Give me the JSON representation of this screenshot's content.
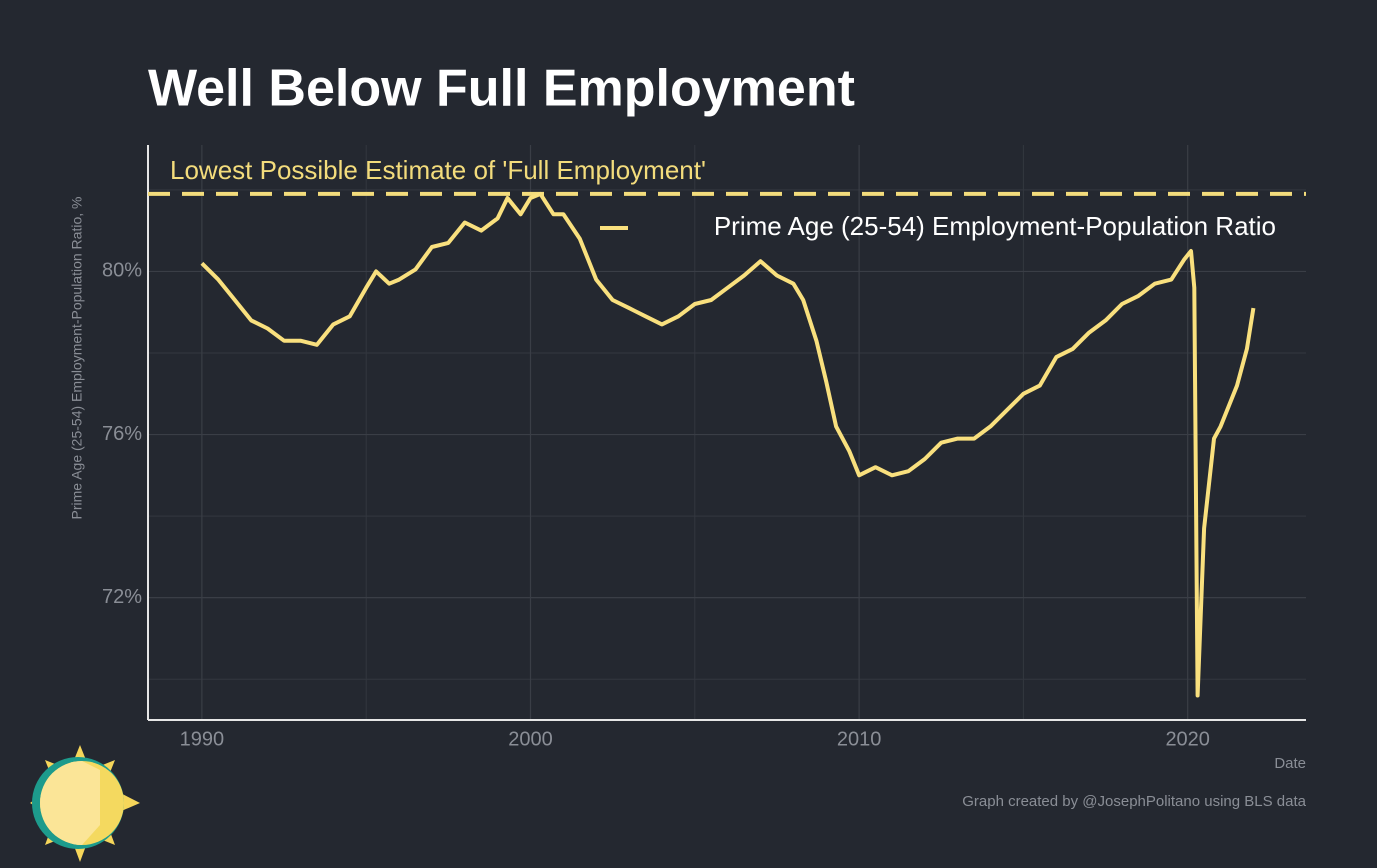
{
  "chart_data": {
    "type": "line",
    "title": "Well Below Full Employment",
    "ylabel": "Prime Age (25-54) Employment-Population Ratio, %",
    "xlabel": "Date",
    "caption": "Graph created by @JosephPolitano using BLS data",
    "reference_line": {
      "label": "Lowest Possible Estimate of 'Full Employment'",
      "value": 81.9,
      "color": "#f3dc7c"
    },
    "legend": "top-right",
    "grid": true,
    "xlim": [
      1988.36,
      2023.6
    ],
    "ylim": [
      69.0,
      83.1
    ],
    "xticks": [
      1990,
      2000,
      2010,
      2020
    ],
    "xticks_minor": [
      1995,
      2005,
      2015
    ],
    "yticks": [
      {
        "value": 72,
        "label": "72%"
      },
      {
        "value": 76,
        "label": "76%"
      },
      {
        "value": 80,
        "label": "80%"
      }
    ],
    "yticks_minor": [
      70,
      74,
      78,
      82
    ],
    "x": [
      1990.0,
      1990.5,
      1991.0,
      1991.5,
      1992.0,
      1992.5,
      1993.0,
      1993.5,
      1994.0,
      1994.5,
      1995.0,
      1995.3,
      1995.7,
      1996.0,
      1996.5,
      1997.0,
      1997.5,
      1998.0,
      1998.5,
      1999.0,
      1999.3,
      1999.7,
      2000.0,
      2000.3,
      2000.7,
      2001.0,
      2001.5,
      2002.0,
      2002.5,
      2003.0,
      2003.5,
      2004.0,
      2004.5,
      2005.0,
      2005.5,
      2006.0,
      2006.5,
      2007.0,
      2007.5,
      2008.0,
      2008.3,
      2008.7,
      2009.0,
      2009.3,
      2009.7,
      2010.0,
      2010.5,
      2011.0,
      2011.5,
      2012.0,
      2012.5,
      2013.0,
      2013.5,
      2014.0,
      2014.5,
      2015.0,
      2015.5,
      2016.0,
      2016.5,
      2017.0,
      2017.5,
      2018.0,
      2018.5,
      2019.0,
      2019.5,
      2019.9,
      2020.1,
      2020.2,
      2020.3,
      2020.5,
      2020.8,
      2021.0,
      2021.5,
      2021.8,
      2022.0
    ],
    "series": [
      {
        "name": "Prime Age (25-54) Employment-Population Ratio",
        "color": "#f9e07e",
        "values": [
          80.2,
          79.8,
          79.3,
          78.8,
          78.6,
          78.3,
          78.3,
          78.2,
          78.7,
          78.9,
          79.6,
          80.0,
          79.7,
          79.8,
          80.05,
          80.6,
          80.7,
          81.2,
          81.0,
          81.3,
          81.8,
          81.4,
          81.8,
          81.9,
          81.4,
          81.4,
          80.8,
          79.8,
          79.3,
          79.1,
          78.9,
          78.7,
          78.9,
          79.2,
          79.3,
          79.6,
          79.9,
          80.25,
          79.9,
          79.7,
          79.3,
          78.3,
          77.3,
          76.2,
          75.6,
          75.0,
          75.2,
          75.0,
          75.1,
          75.4,
          75.8,
          75.9,
          75.9,
          76.2,
          76.6,
          77.0,
          77.2,
          77.9,
          78.1,
          78.5,
          78.8,
          79.2,
          79.4,
          79.7,
          79.8,
          80.3,
          80.5,
          79.6,
          69.6,
          73.7,
          75.9,
          76.2,
          77.2,
          78.1,
          79.1
        ]
      }
    ]
  }
}
